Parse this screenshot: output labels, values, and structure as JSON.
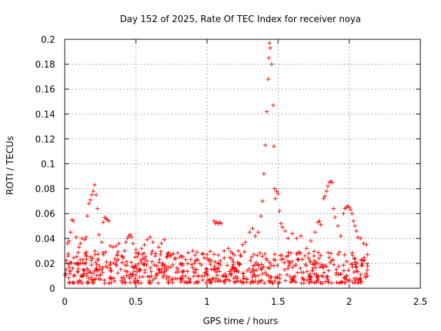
{
  "chart_data": {
    "type": "scatter",
    "title": "Day 152 of 2025, Rate Of TEC Index for receiver noya",
    "xlabel": "GPS time / hours",
    "ylabel": "ROTI / TECUs",
    "xlim": [
      0,
      2.5
    ],
    "ylim": [
      0,
      0.2
    ],
    "x_ticks": [
      "0",
      "0.5",
      "1",
      "1.5",
      "2",
      "2.5"
    ],
    "y_ticks": [
      "0",
      "0.02",
      "0.04",
      "0.06",
      "0.08",
      "0.1",
      "0.12",
      "0.14",
      "0.16",
      "0.18",
      "0.2"
    ],
    "grid": true,
    "marker": "+",
    "series": [
      {
        "color": "#ff0000",
        "points": [
          [
            0.01,
            0.015
          ],
          [
            0.02,
            0.036
          ],
          [
            0.03,
            0.038
          ],
          [
            0.04,
            0.045
          ],
          [
            0.05,
            0.055
          ],
          [
            0.06,
            0.054
          ],
          [
            0.08,
            0.041
          ],
          [
            0.1,
            0.033
          ],
          [
            0.11,
            0.036
          ],
          [
            0.12,
            0.04
          ],
          [
            0.14,
            0.039
          ],
          [
            0.15,
            0.041
          ],
          [
            0.16,
            0.058
          ],
          [
            0.17,
            0.068
          ],
          [
            0.18,
            0.071
          ],
          [
            0.19,
            0.075
          ],
          [
            0.2,
            0.078
          ],
          [
            0.21,
            0.083
          ],
          [
            0.22,
            0.075
          ],
          [
            0.23,
            0.064
          ],
          [
            0.24,
            0.043
          ],
          [
            0.26,
            0.037
          ],
          [
            0.27,
            0.053
          ],
          [
            0.28,
            0.057
          ],
          [
            0.29,
            0.056
          ],
          [
            0.3,
            0.055
          ],
          [
            0.31,
            0.054
          ],
          [
            0.32,
            0.034
          ],
          [
            0.34,
            0.033
          ],
          [
            0.36,
            0.034
          ],
          [
            0.38,
            0.036
          ],
          [
            0.4,
            0.026
          ],
          [
            0.42,
            0.03
          ],
          [
            0.43,
            0.037
          ],
          [
            0.44,
            0.04
          ],
          [
            0.45,
            0.042
          ],
          [
            0.46,
            0.043
          ],
          [
            0.47,
            0.041
          ],
          [
            0.48,
            0.036
          ],
          [
            0.5,
            0.031
          ],
          [
            0.52,
            0.028
          ],
          [
            0.54,
            0.032
          ],
          [
            0.56,
            0.035
          ],
          [
            0.58,
            0.039
          ],
          [
            0.6,
            0.041
          ],
          [
            0.62,
            0.037
          ],
          [
            0.64,
            0.028
          ],
          [
            0.66,
            0.033
          ],
          [
            0.68,
            0.036
          ],
          [
            0.7,
            0.039
          ],
          [
            0.72,
            0.025
          ],
          [
            0.75,
            0.027
          ],
          [
            0.78,
            0.024
          ],
          [
            0.82,
            0.025
          ],
          [
            0.85,
            0.023
          ],
          [
            0.9,
            0.03
          ],
          [
            0.93,
            0.029
          ],
          [
            0.97,
            0.028
          ],
          [
            1.0,
            0.027
          ],
          [
            1.03,
            0.022
          ],
          [
            1.05,
            0.054
          ],
          [
            1.06,
            0.052
          ],
          [
            1.07,
            0.053
          ],
          [
            1.08,
            0.052
          ],
          [
            1.09,
            0.053
          ],
          [
            1.1,
            0.052
          ],
          [
            1.12,
            0.03
          ],
          [
            1.15,
            0.032
          ],
          [
            1.18,
            0.028
          ],
          [
            1.22,
            0.03
          ],
          [
            1.25,
            0.035
          ],
          [
            1.27,
            0.037
          ],
          [
            1.3,
            0.045
          ],
          [
            1.32,
            0.048
          ],
          [
            1.34,
            0.042
          ],
          [
            1.36,
            0.045
          ],
          [
            1.38,
            0.058
          ],
          [
            1.39,
            0.07
          ],
          [
            1.4,
            0.092
          ],
          [
            1.41,
            0.115
          ],
          [
            1.42,
            0.142
          ],
          [
            1.43,
            0.168
          ],
          [
            1.435,
            0.185
          ],
          [
            1.44,
            0.197
          ],
          [
            1.445,
            0.193
          ],
          [
            1.455,
            0.18
          ],
          [
            1.465,
            0.147
          ],
          [
            1.47,
            0.114
          ],
          [
            1.475,
            0.08
          ],
          [
            1.48,
            0.072
          ],
          [
            1.49,
            0.078
          ],
          [
            1.5,
            0.076
          ],
          [
            1.51,
            0.062
          ],
          [
            1.52,
            0.052
          ],
          [
            1.53,
            0.049
          ],
          [
            1.55,
            0.046
          ],
          [
            1.57,
            0.04
          ],
          [
            1.6,
            0.044
          ],
          [
            1.63,
            0.04
          ],
          [
            1.66,
            0.042
          ],
          [
            1.7,
            0.032
          ],
          [
            1.73,
            0.038
          ],
          [
            1.76,
            0.045
          ],
          [
            1.78,
            0.053
          ],
          [
            1.79,
            0.054
          ],
          [
            1.8,
            0.051
          ],
          [
            1.82,
            0.072
          ],
          [
            1.83,
            0.074
          ],
          [
            1.84,
            0.078
          ],
          [
            1.85,
            0.082
          ],
          [
            1.86,
            0.085
          ],
          [
            1.87,
            0.086
          ],
          [
            1.88,
            0.085
          ],
          [
            1.89,
            0.064
          ],
          [
            1.9,
            0.057
          ],
          [
            1.92,
            0.05
          ],
          [
            1.94,
            0.042
          ],
          [
            1.96,
            0.06
          ],
          [
            1.97,
            0.064
          ],
          [
            1.98,
            0.065
          ],
          [
            1.99,
            0.066
          ],
          [
            2.0,
            0.065
          ],
          [
            2.01,
            0.063
          ],
          [
            2.02,
            0.06
          ],
          [
            2.03,
            0.054
          ],
          [
            2.04,
            0.05
          ],
          [
            2.05,
            0.046
          ],
          [
            2.06,
            0.041
          ],
          [
            2.08,
            0.04
          ],
          [
            2.1,
            0.036
          ],
          [
            2.12,
            0.035
          ]
        ]
      }
    ],
    "dense_band": {
      "x_range": [
        0,
        2.13
      ],
      "y_range": [
        0.004,
        0.03
      ],
      "description": "dense cluster of points mostly between 0.004 and 0.03 across the whole time range"
    }
  }
}
